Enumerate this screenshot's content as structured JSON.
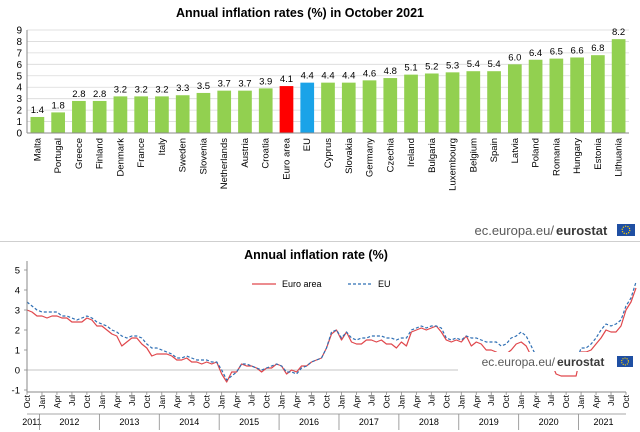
{
  "brand": {
    "credit_prefix": "ec.europa.eu/",
    "credit_name": "eurostat",
    "flag_color": "#1f4fa3",
    "star_color": "#ffd200"
  },
  "chart_data": [
    {
      "type": "bar",
      "title": "Annual inflation rates (%) in October 2021",
      "xlabel": "",
      "ylabel": "",
      "ylim": [
        0,
        9
      ],
      "yticks": [
        0,
        1,
        2,
        3,
        4,
        5,
        6,
        7,
        8,
        9
      ],
      "grid": true,
      "legend": "none",
      "categories": [
        "Malta",
        "Portugal",
        "Greece",
        "Finland",
        "Denmark",
        "France",
        "Italy",
        "Sweden",
        "Slovenia",
        "Netherlands",
        "Austria",
        "Croatia",
        "Euro area",
        "EU",
        "Cyprus",
        "Slovakia",
        "Germany",
        "Czechia",
        "Ireland",
        "Bulgaria",
        "Luxembourg",
        "Belgium",
        "Spain",
        "Latvia",
        "Poland",
        "Romania",
        "Hungary",
        "Estonia",
        "Lithuania"
      ],
      "values": [
        1.4,
        1.8,
        2.8,
        2.8,
        3.2,
        3.2,
        3.2,
        3.3,
        3.5,
        3.7,
        3.7,
        3.9,
        4.1,
        4.4,
        4.4,
        4.4,
        4.6,
        4.8,
        5.1,
        5.2,
        5.3,
        5.4,
        5.4,
        6.0,
        6.4,
        6.5,
        6.6,
        6.8,
        8.2
      ],
      "value_labels": [
        "1.4",
        "1.8",
        "2.8",
        "2.8",
        "3.2",
        "3.2",
        "3.2",
        "3.3",
        "3.5",
        "3.7",
        "3.7",
        "3.9",
        "4.1",
        "4.4",
        "4.4",
        "4.4",
        "4.6",
        "4.8",
        "5.1",
        "5.2",
        "5.3",
        "5.4",
        "5.4",
        "6.0",
        "6.4",
        "6.5",
        "6.6",
        "6.8",
        "8.2"
      ],
      "colors": {
        "default": "#92d050",
        "Euro area": "#ff0000",
        "EU": "#1aa3e8"
      }
    },
    {
      "type": "line",
      "title": "Annual inflation rate (%)",
      "xlabel": "",
      "ylabel": "",
      "ylim": [
        -1,
        5
      ],
      "yticks": [
        -1,
        0,
        1,
        2,
        3,
        4,
        5
      ],
      "grid": false,
      "legend": "top-center",
      "x_tick_labels": [
        "Oct",
        "Jan",
        "Apr",
        "Jul",
        "Oct",
        "Jan",
        "Apr",
        "Jul",
        "Oct",
        "Jan",
        "Apr",
        "Jul",
        "Oct",
        "Jan",
        "Apr",
        "Jul",
        "Oct",
        "Jan",
        "Apr",
        "Jul",
        "Oct",
        "Jan",
        "Apr",
        "Jul",
        "Oct",
        "Jan",
        "Apr",
        "Jul",
        "Oct",
        "Jan",
        "Apr",
        "Jul",
        "Oct",
        "Jan",
        "Apr",
        "Jul",
        "Oct",
        "Jan",
        "Apr",
        "Jul",
        "Oct"
      ],
      "years": [
        "2011",
        "2012",
        "2013",
        "2014",
        "2015",
        "2016",
        "2017",
        "2018",
        "2019",
        "2020",
        "2021"
      ],
      "x_start": "2011-10",
      "x_end": "2021-10",
      "series": [
        {
          "name": "Euro area",
          "color": "#e0474c",
          "dash": "solid",
          "values": [
            3.0,
            2.9,
            2.7,
            2.7,
            2.6,
            2.7,
            2.7,
            2.6,
            2.6,
            2.4,
            2.4,
            2.4,
            2.6,
            2.5,
            2.2,
            2.2,
            2.0,
            1.8,
            1.7,
            1.2,
            1.4,
            1.6,
            1.6,
            1.3,
            1.1,
            0.7,
            0.8,
            0.8,
            0.8,
            0.7,
            0.5,
            0.5,
            0.6,
            0.4,
            0.4,
            0.3,
            0.4,
            0.3,
            0.4,
            -0.2,
            -0.6,
            -0.1,
            -0.1,
            0.3,
            0.2,
            0.2,
            0.1,
            -0.1,
            0.1,
            0.1,
            0.3,
            0.2,
            -0.2,
            0.0,
            -0.1,
            0.2,
            0.2,
            0.4,
            0.5,
            0.6,
            1.1,
            1.8,
            2.0,
            1.5,
            1.9,
            1.4,
            1.3,
            1.3,
            1.5,
            1.5,
            1.4,
            1.5,
            1.3,
            1.3,
            1.1,
            1.4,
            1.2,
            1.9,
            2.0,
            2.1,
            2.0,
            2.1,
            2.2,
            1.9,
            1.5,
            1.4,
            1.5,
            1.4,
            1.7,
            1.2,
            1.4,
            1.3,
            1.0,
            1.0,
            0.9,
            0.7,
            0.8,
            1.0,
            1.3,
            1.4,
            1.2,
            0.7,
            0.3,
            0.1,
            0.3,
            0.4,
            -0.2,
            -0.3,
            -0.3,
            -0.3,
            -0.3,
            0.9,
            0.9,
            1.0,
            1.3,
            1.6,
            2.0,
            1.9,
            1.9,
            2.2,
            3.0,
            3.4,
            4.1
          ]
        },
        {
          "name": "EU",
          "color": "#2f6fb4",
          "dash": "dashed",
          "values": [
            3.4,
            3.2,
            3.0,
            2.9,
            2.9,
            2.9,
            2.9,
            2.7,
            2.7,
            2.6,
            2.5,
            2.6,
            2.7,
            2.6,
            2.4,
            2.3,
            2.2,
            2.0,
            1.9,
            1.7,
            1.6,
            1.7,
            1.7,
            1.6,
            1.3,
            1.1,
            1.1,
            1.0,
            0.9,
            0.8,
            0.6,
            0.6,
            0.7,
            0.6,
            0.5,
            0.5,
            0.5,
            0.4,
            0.4,
            0.0,
            -0.5,
            -0.3,
            -0.1,
            0.3,
            0.3,
            0.2,
            0.1,
            0.0,
            0.1,
            0.2,
            0.3,
            0.2,
            -0.1,
            -0.1,
            -0.2,
            0.1,
            0.2,
            0.4,
            0.5,
            0.6,
            1.1,
            1.9,
            2.0,
            1.6,
            1.9,
            1.6,
            1.5,
            1.6,
            1.6,
            1.7,
            1.7,
            1.7,
            1.6,
            1.6,
            1.5,
            1.6,
            1.6,
            2.0,
            2.1,
            2.2,
            2.1,
            2.2,
            2.2,
            2.1,
            1.6,
            1.5,
            1.6,
            1.5,
            1.7,
            1.6,
            1.6,
            1.5,
            1.4,
            1.4,
            1.4,
            1.2,
            1.3,
            1.6,
            1.7,
            1.9,
            1.7,
            1.2,
            0.7,
            0.6,
            0.8,
            0.9,
            0.5,
            0.4,
            0.3,
            0.3,
            0.4,
            1.1,
            1.1,
            1.3,
            1.6,
            2.0,
            2.3,
            2.2,
            2.3,
            2.5,
            3.2,
            3.6,
            4.4
          ]
        }
      ]
    }
  ]
}
